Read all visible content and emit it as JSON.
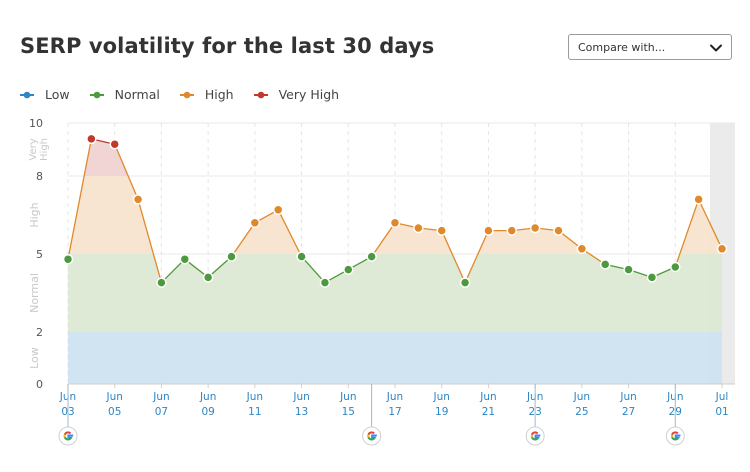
{
  "header": {
    "title": "SERP volatility for the last 30 days",
    "compare_label": "Compare with..."
  },
  "icons": {
    "compare_chevron": "chevron-down-icon",
    "google_update": "google-icon"
  },
  "colors": {
    "low": "#2d86c5",
    "normal": "#4d9a3e",
    "high": "#e0892a",
    "very_high": "#c0392b"
  },
  "chart_data": {
    "type": "area",
    "title": "SERP volatility for the last 30 days",
    "ylim": [
      0,
      10
    ],
    "yticks": [
      "0",
      "2",
      "5",
      "8",
      "10"
    ],
    "bands": [
      {
        "name": "Low",
        "range": [
          0,
          2
        ],
        "color": "#cfe3f1"
      },
      {
        "name": "Normal",
        "range": [
          2,
          5
        ],
        "color": "#dde9d4"
      },
      {
        "name": "High",
        "range": [
          5,
          8
        ],
        "color": "#f8e4cf"
      },
      {
        "name": "Very High",
        "range": [
          8,
          10
        ],
        "color": "#f0d2d2"
      }
    ],
    "legend": [
      "Low",
      "Normal",
      "High",
      "Very High"
    ],
    "x": [
      "Jun 03",
      "Jun 04",
      "Jun 05",
      "Jun 06",
      "Jun 07",
      "Jun 08",
      "Jun 09",
      "Jun 10",
      "Jun 11",
      "Jun 12",
      "Jun 13",
      "Jun 14",
      "Jun 15",
      "Jun 16",
      "Jun 17",
      "Jun 18",
      "Jun 19",
      "Jun 20",
      "Jun 21",
      "Jun 22",
      "Jun 23",
      "Jun 24",
      "Jun 25",
      "Jun 26",
      "Jun 27",
      "Jun 28",
      "Jun 29",
      "Jun 30",
      "Jul 01"
    ],
    "values": [
      4.8,
      9.4,
      9.2,
      7.1,
      3.9,
      4.8,
      4.1,
      4.9,
      6.2,
      6.7,
      4.9,
      3.9,
      4.4,
      4.9,
      6.2,
      6.0,
      5.9,
      3.9,
      5.9,
      5.9,
      6.0,
      5.9,
      5.2,
      4.6,
      4.4,
      4.1,
      4.5,
      7.1,
      5.2
    ],
    "tick_labels": [
      {
        "month": "Jun",
        "day": "03"
      },
      {
        "month": "Jun",
        "day": "05"
      },
      {
        "month": "Jun",
        "day": "07"
      },
      {
        "month": "Jun",
        "day": "09"
      },
      {
        "month": "Jun",
        "day": "11"
      },
      {
        "month": "Jun",
        "day": "13"
      },
      {
        "month": "Jun",
        "day": "15"
      },
      {
        "month": "Jun",
        "day": "17"
      },
      {
        "month": "Jun",
        "day": "19"
      },
      {
        "month": "Jun",
        "day": "21"
      },
      {
        "month": "Jun",
        "day": "23"
      },
      {
        "month": "Jun",
        "day": "25"
      },
      {
        "month": "Jun",
        "day": "27"
      },
      {
        "month": "Jun",
        "day": "29"
      },
      {
        "month": "Jul",
        "day": "01"
      }
    ],
    "google_updates": [
      "Jun 03",
      "Jun 16",
      "Jun 23",
      "Jun 29"
    ],
    "grid": true
  }
}
